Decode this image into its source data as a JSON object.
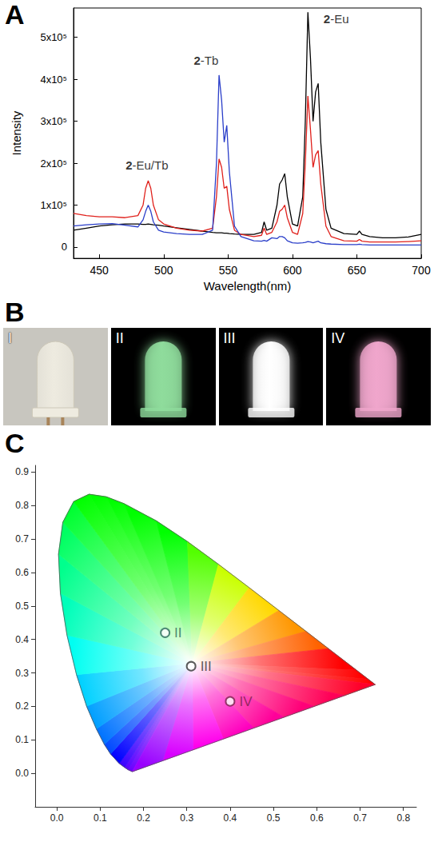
{
  "chart_data": [
    {
      "panel": "A",
      "type": "line",
      "xlabel": "Wavelength(nm)",
      "ylabel": "Intensity",
      "xlim": [
        430,
        700
      ],
      "xticks": [
        450,
        500,
        550,
        600,
        650,
        700
      ],
      "ylim": [
        -27000,
        570000
      ],
      "yticks": [
        0,
        {
          "value": 100000,
          "label": "1x10⁵"
        },
        {
          "value": 200000,
          "label": "2x10⁵"
        },
        {
          "value": 300000,
          "label": "3x10⁵"
        },
        {
          "value": 400000,
          "label": "4x10⁵"
        },
        {
          "value": 500000,
          "label": "5x10⁵"
        }
      ],
      "x": [
        430,
        440,
        450,
        460,
        470,
        480,
        484,
        486,
        488,
        490,
        492,
        496,
        500,
        510,
        520,
        530,
        538,
        541,
        543,
        545,
        547,
        549,
        551,
        555,
        560,
        570,
        576,
        578,
        580,
        584,
        588,
        590,
        592,
        594,
        596,
        600,
        604,
        608,
        610,
        612,
        614,
        616,
        618,
        620,
        622,
        626,
        630,
        640,
        650,
        652,
        654,
        660,
        670,
        680,
        690,
        700
      ],
      "series": [
        {
          "name": "2-Eu",
          "color": "#000000",
          "values": [
            40000,
            45000,
            50000,
            53000,
            55000,
            55000,
            54000,
            54000,
            55000,
            54000,
            53000,
            52000,
            50000,
            46000,
            42000,
            38000,
            35000,
            34000,
            34000,
            34000,
            33000,
            33000,
            32000,
            31000,
            30000,
            30000,
            35000,
            60000,
            40000,
            45000,
            100000,
            150000,
            160000,
            175000,
            120000,
            55000,
            50000,
            120000,
            300000,
            560000,
            450000,
            300000,
            370000,
            390000,
            250000,
            90000,
            45000,
            32000,
            30000,
            38000,
            30000,
            25000,
            22000,
            22000,
            24000,
            30000
          ]
        },
        {
          "name": "2-Eu/Tb",
          "color": "#e0201b",
          "values": [
            80000,
            75000,
            72000,
            72000,
            70000,
            75000,
            100000,
            140000,
            158000,
            140000,
            100000,
            65000,
            55000,
            45000,
            40000,
            38000,
            45000,
            120000,
            210000,
            190000,
            140000,
            145000,
            90000,
            40000,
            30000,
            25000,
            28000,
            45000,
            30000,
            35000,
            60000,
            85000,
            90000,
            100000,
            70000,
            35000,
            30000,
            80000,
            200000,
            360000,
            280000,
            190000,
            220000,
            230000,
            150000,
            50000,
            25000,
            15000,
            14000,
            18000,
            14000,
            12000,
            12000,
            12000,
            13000,
            15000
          ]
        },
        {
          "name": "2-Tb",
          "color": "#2a3ec9",
          "values": [
            50000,
            53000,
            55000,
            56000,
            52000,
            48000,
            65000,
            85000,
            100000,
            85000,
            60000,
            40000,
            36000,
            32000,
            30000,
            30000,
            40000,
            200000,
            410000,
            350000,
            250000,
            290000,
            180000,
            50000,
            25000,
            15000,
            14000,
            16000,
            14000,
            22000,
            20000,
            25000,
            25000,
            22000,
            15000,
            10000,
            9000,
            10000,
            11000,
            13000,
            12000,
            10000,
            12000,
            14000,
            10000,
            8000,
            7000,
            6000,
            6000,
            7000,
            6000,
            5000,
            5000,
            5000,
            5000,
            5000
          ]
        }
      ],
      "annotations": [
        {
          "text": "2-Eu/Tb",
          "x": 487,
          "y": 195000
        },
        {
          "text": "2-Tb",
          "x": 533,
          "y": 445000
        },
        {
          "text": "2-Eu",
          "x": 634,
          "y": 545000
        }
      ]
    },
    {
      "panel": "C",
      "type": "scatter",
      "marker": "circle",
      "xlim": [
        -0.05,
        0.83
      ],
      "xticks": [
        {
          "value": 0,
          "label": "0.0"
        },
        0.1,
        0.2,
        0.3,
        0.4,
        0.5,
        0.6,
        0.7,
        0.8
      ],
      "ylim": [
        -0.1,
        0.92
      ],
      "yticks": [
        {
          "value": 0,
          "label": "0.0"
        },
        0.1,
        0.2,
        0.3,
        0.4,
        0.5,
        0.6,
        0.7,
        0.8,
        0.9
      ],
      "locus": {
        "x": [
          0.1741,
          0.1644,
          0.1566,
          0.144,
          0.1241,
          0.1096,
          0.0913,
          0.0687,
          0.0454,
          0.0235,
          0.0082,
          0.0039,
          0.0139,
          0.0389,
          0.0743,
          0.1142,
          0.1547,
          0.2296,
          0.3016,
          0.3731,
          0.4441,
          0.5125,
          0.5752,
          0.627,
          0.6915,
          0.719,
          0.7347
        ],
        "y": [
          0.005,
          0.0109,
          0.0177,
          0.0297,
          0.0578,
          0.0868,
          0.1327,
          0.2007,
          0.295,
          0.4127,
          0.5384,
          0.6548,
          0.7502,
          0.812,
          0.8338,
          0.8262,
          0.8059,
          0.7543,
          0.6923,
          0.6245,
          0.5547,
          0.4866,
          0.4242,
          0.3725,
          0.3083,
          0.2809,
          0.2653
        ]
      },
      "points": [
        {
          "label": "II",
          "x": 0.25,
          "y": 0.42,
          "color": "#2b6a5a"
        },
        {
          "label": "III",
          "x": 0.31,
          "y": 0.32,
          "color": "#333333"
        },
        {
          "label": "IV",
          "x": 0.4,
          "y": 0.215,
          "color": "#7a1e4c"
        }
      ]
    }
  ],
  "photos": {
    "panel": "B",
    "items": [
      {
        "label": "I",
        "color": "#eeebe0"
      },
      {
        "label": "II",
        "color": "#8fdc9c"
      },
      {
        "label": "III",
        "color": "#ffffff"
      },
      {
        "label": "IV",
        "color": "#f0a6cc"
      }
    ]
  }
}
